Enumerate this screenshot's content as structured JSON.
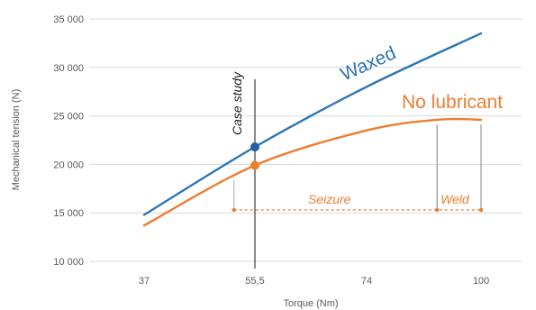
{
  "chart_data": {
    "type": "line",
    "xlabel": "Torque (Nm)",
    "ylabel": "Mechanical tension (N)",
    "x_ticks": [
      "37",
      "55,5",
      "74",
      "100"
    ],
    "y_ticks": [
      "10 000",
      "15 000",
      "20 000",
      "25 000",
      "30 000",
      "35 000"
    ],
    "ylim": [
      10000,
      35000
    ],
    "grid": true,
    "series": [
      {
        "name": "Waxed",
        "color": "#2e75b6",
        "x": [
          37,
          55.5,
          74,
          100
        ],
        "y": [
          14800,
          21800,
          28000,
          33500
        ]
      },
      {
        "name": "No lubricant",
        "color": "#ed7d31",
        "x": [
          37,
          55.5,
          74,
          90,
          100
        ],
        "y": [
          13700,
          19900,
          23500,
          24600,
          24600
        ]
      }
    ],
    "annotations": {
      "case_study": "Case study",
      "seizure": "Seizure",
      "weld": "Weld"
    },
    "highlight_points": [
      {
        "series": "Waxed",
        "x": 55.5,
        "y": 21800
      },
      {
        "series": "No lubricant",
        "x": 55.5,
        "y": 19900
      }
    ],
    "seizure_level": 15300,
    "seizure_x_start": 52,
    "weld_x_start": 90,
    "weld_x_end": 100
  }
}
